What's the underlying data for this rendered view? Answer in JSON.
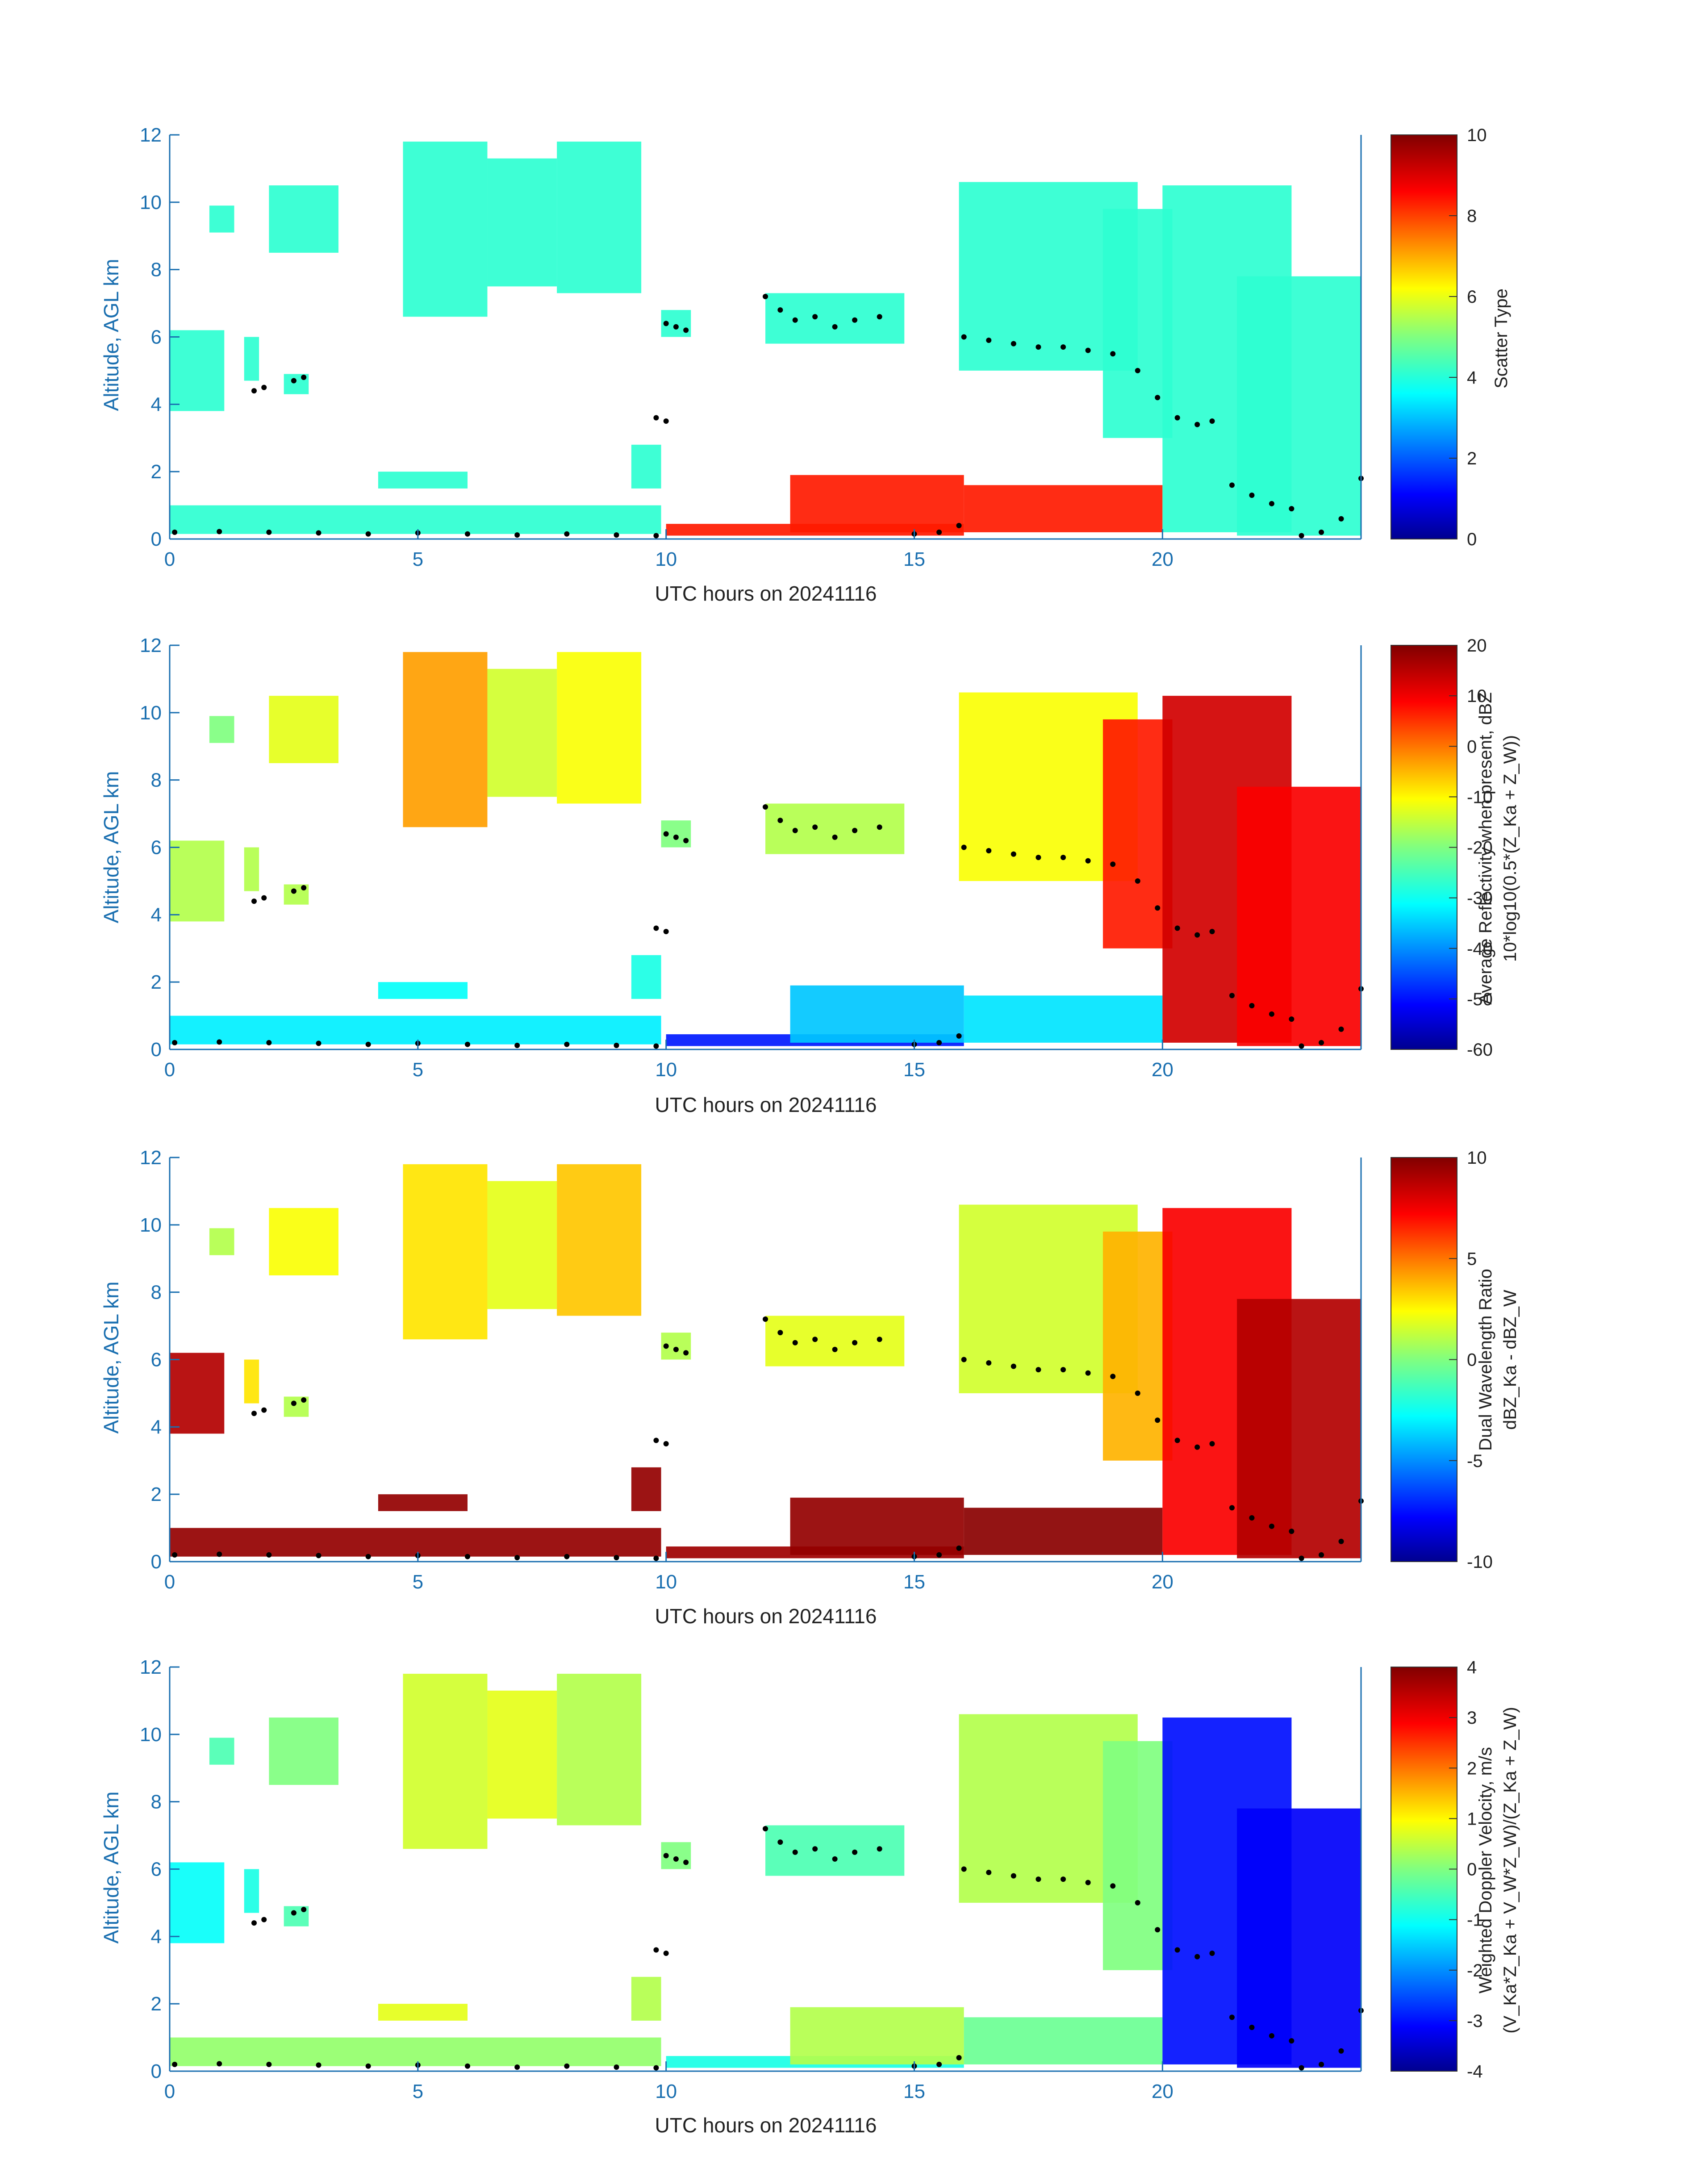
{
  "chart_data": [
    {
      "type": "heatmap",
      "xlabel": "UTC hours on 20241116",
      "ylabel": "Altitude, AGL km",
      "xlim": [
        0,
        24
      ],
      "ylim": [
        0,
        12
      ],
      "xticks": [
        "0",
        "5",
        "10",
        "15",
        "20"
      ],
      "yticks": [
        "0",
        "2",
        "4",
        "6",
        "8",
        "10",
        "12"
      ],
      "colorbar": {
        "label": "Scatter Type",
        "label2": "",
        "range": [
          0,
          10
        ],
        "ticks": [
          "10",
          "8",
          "6",
          "4",
          "2",
          "0"
        ]
      },
      "regions": [
        {
          "x": [
            0,
            24
          ],
          "y": [
            0.1,
            1.0
          ],
          "value": 4.2
        },
        {
          "x": [
            10,
            16
          ],
          "y": [
            0.1,
            0.5
          ],
          "value": 8.5
        },
        {
          "x": [
            16,
            20
          ],
          "y": [
            0.1,
            1.8
          ],
          "value": 8.5
        },
        {
          "x": [
            2,
            10
          ],
          "y": [
            6.5,
            11.5
          ],
          "value": 4.2
        },
        {
          "x": [
            16,
            24
          ],
          "y": [
            2.0,
            11.0
          ],
          "value": 4.2
        }
      ]
    },
    {
      "type": "heatmap",
      "xlabel": "UTC hours on 20241116",
      "ylabel": "Altitude, AGL km",
      "xlim": [
        0,
        24
      ],
      "ylim": [
        0,
        12
      ],
      "xticks": [
        "0",
        "5",
        "10",
        "15",
        "20"
      ],
      "yticks": [
        "0",
        "2",
        "4",
        "6",
        "8",
        "10",
        "12"
      ],
      "colorbar": {
        "label": "Average Reflectivity when present, dBZ",
        "label2": "10*log10(0.5*(Z_Ka + Z_W))",
        "range": [
          -60,
          20
        ],
        "ticks": [
          "20",
          "10",
          "0",
          "-10",
          "-20",
          "-30",
          "-40",
          "-50",
          "-60"
        ]
      }
    },
    {
      "type": "heatmap",
      "xlabel": "UTC hours on 20241116",
      "ylabel": "Altitude, AGL km",
      "xlim": [
        0,
        24
      ],
      "ylim": [
        0,
        12
      ],
      "xticks": [
        "0",
        "5",
        "10",
        "15",
        "20"
      ],
      "yticks": [
        "0",
        "2",
        "4",
        "6",
        "8",
        "10",
        "12"
      ],
      "colorbar": {
        "label": "Dual Wavelength Ratio",
        "label2": "dBZ_Ka - dBZ_W",
        "range": [
          -10,
          10
        ],
        "ticks": [
          "10",
          "5",
          "0",
          "-5",
          "-10"
        ]
      }
    },
    {
      "type": "heatmap",
      "xlabel": "UTC hours on 20241116",
      "ylabel": "Altitude, AGL km",
      "xlim": [
        0,
        24
      ],
      "ylim": [
        0,
        12
      ],
      "xticks": [
        "0",
        "5",
        "10",
        "15",
        "20"
      ],
      "yticks": [
        "0",
        "2",
        "4",
        "6",
        "8",
        "10",
        "12"
      ],
      "colorbar": {
        "label": "Weighted Doppler Velocity, m/s",
        "label2": "(V_Ka*Z_Ka + V_W*Z_W)/(Z_Ka + Z_W)",
        "range": [
          -4,
          4
        ],
        "ticks": [
          "4",
          "3",
          "2",
          "1",
          "0",
          "-1",
          "-2",
          "-3",
          "-4"
        ]
      }
    }
  ],
  "colors": {
    "axis": "#1a6fb0",
    "jet": [
      "#00008f",
      "#0000ff",
      "#0080ff",
      "#00ffff",
      "#80ff80",
      "#ffff00",
      "#ff8000",
      "#ff0000",
      "#800000"
    ],
    "marker": "#000000"
  },
  "marker_series": {
    "name": "",
    "points": [
      [
        0.1,
        0.2
      ],
      [
        1.0,
        0.22
      ],
      [
        2.0,
        0.2
      ],
      [
        3.0,
        0.18
      ],
      [
        4.0,
        0.15
      ],
      [
        5.0,
        0.18
      ],
      [
        6.0,
        0.15
      ],
      [
        7.0,
        0.12
      ],
      [
        8.0,
        0.15
      ],
      [
        9.0,
        0.12
      ],
      [
        9.8,
        0.1
      ],
      [
        10.0,
        6.4
      ],
      [
        10.2,
        6.3
      ],
      [
        10.4,
        6.2
      ],
      [
        12.0,
        7.2
      ],
      [
        12.3,
        6.8
      ],
      [
        12.6,
        6.5
      ],
      [
        13.0,
        6.6
      ],
      [
        13.4,
        6.3
      ],
      [
        13.8,
        6.5
      ],
      [
        14.3,
        6.6
      ],
      [
        15.0,
        0.15
      ],
      [
        15.5,
        0.2
      ],
      [
        15.9,
        0.4
      ],
      [
        16.0,
        6.0
      ],
      [
        16.5,
        5.9
      ],
      [
        17.0,
        5.8
      ],
      [
        17.5,
        5.7
      ],
      [
        18.0,
        5.7
      ],
      [
        18.5,
        5.6
      ],
      [
        19.0,
        5.5
      ],
      [
        19.5,
        5.0
      ],
      [
        19.9,
        4.2
      ],
      [
        20.3,
        3.6
      ],
      [
        20.7,
        3.4
      ],
      [
        21.0,
        3.5
      ],
      [
        21.4,
        1.6
      ],
      [
        21.8,
        1.3
      ],
      [
        22.2,
        1.05
      ],
      [
        22.6,
        0.9
      ],
      [
        22.8,
        0.1
      ],
      [
        23.2,
        0.2
      ],
      [
        23.6,
        0.6
      ],
      [
        24.0,
        1.8
      ],
      [
        1.7,
        4.4
      ],
      [
        1.9,
        4.5
      ],
      [
        2.5,
        4.7
      ],
      [
        2.7,
        4.8
      ],
      [
        9.8,
        3.6
      ],
      [
        10.0,
        3.5
      ]
    ]
  }
}
